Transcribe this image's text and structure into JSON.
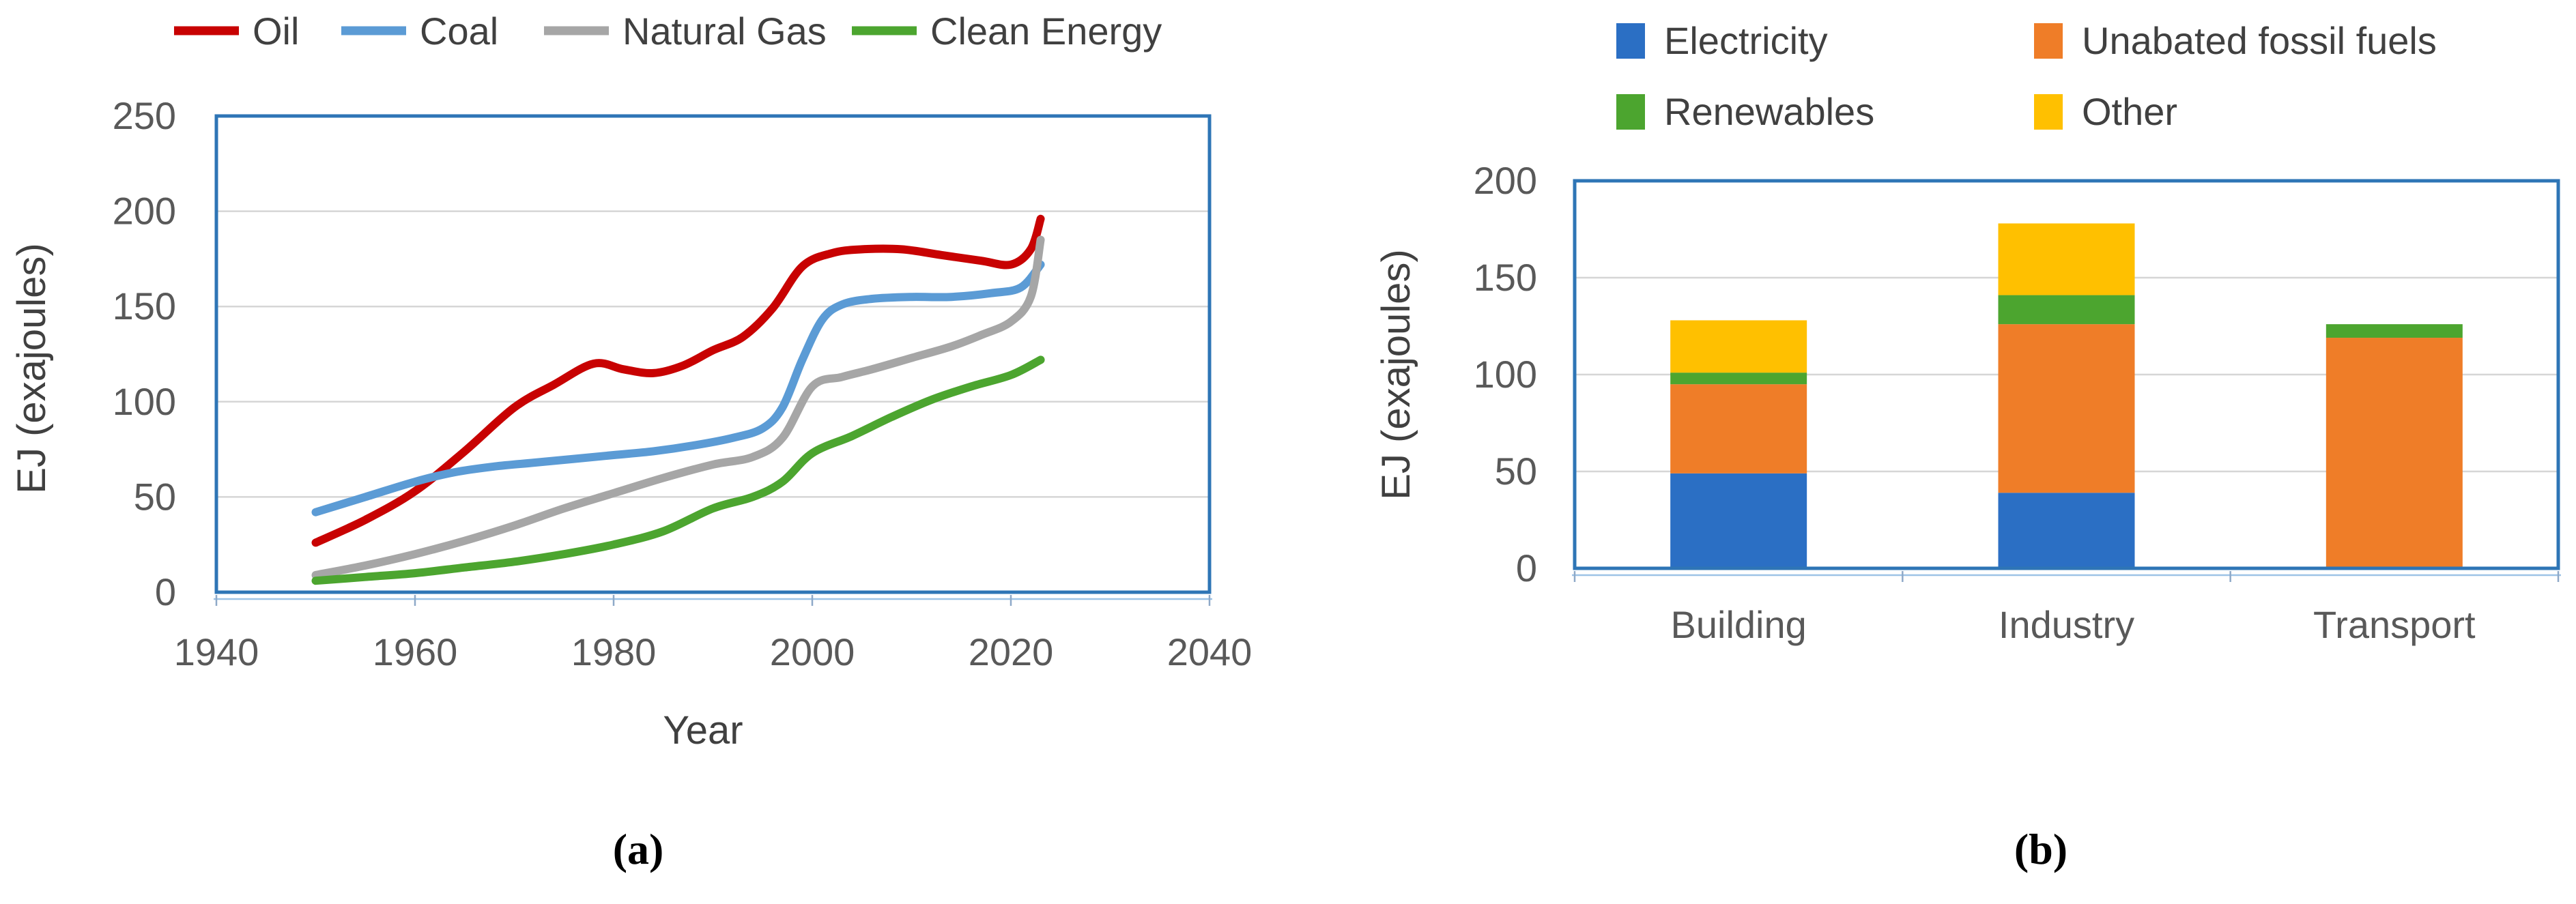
{
  "figure": {
    "captions": {
      "a": "(a)",
      "b": "(b)"
    }
  },
  "colors": {
    "frame": "#2E75B6",
    "grid": "#D6D6D6",
    "tick_text": "#595959",
    "legend_text": "#404040",
    "caption_text": "#000000",
    "sub_axis_line": "#9DC3E6"
  },
  "chart_data": [
    {
      "id": "a",
      "type": "line",
      "title": "",
      "xlabel": "Year",
      "ylabel": "EJ (exajoules)",
      "xlim": [
        1940,
        2040
      ],
      "ylim": [
        0,
        250
      ],
      "xticks": [
        1940,
        1960,
        1980,
        2000,
        2020,
        2040
      ],
      "yticks": [
        0,
        50,
        100,
        150,
        200,
        250
      ],
      "grid": "horizontal",
      "legend_position": "top",
      "series": [
        {
          "name": "Oil",
          "color": "#C80202",
          "points": [
            [
              1950,
              26
            ],
            [
              1955,
              38
            ],
            [
              1960,
              53
            ],
            [
              1965,
              74
            ],
            [
              1970,
              97
            ],
            [
              1974,
              109
            ],
            [
              1978,
              120
            ],
            [
              1981,
              117
            ],
            [
              1984,
              115
            ],
            [
              1987,
              119
            ],
            [
              1990,
              127
            ],
            [
              1993,
              134
            ],
            [
              1996,
              149
            ],
            [
              1999,
              171
            ],
            [
              2002,
              178
            ],
            [
              2005,
              180
            ],
            [
              2009,
              180
            ],
            [
              2013,
              177
            ],
            [
              2017,
              174
            ],
            [
              2020,
              172
            ],
            [
              2022,
              180
            ],
            [
              2023,
              196
            ]
          ]
        },
        {
          "name": "Coal",
          "color": "#5B9BD5",
          "points": [
            [
              1950,
              42
            ],
            [
              1955,
              50
            ],
            [
              1960,
              58
            ],
            [
              1964,
              63
            ],
            [
              1968,
              66
            ],
            [
              1972,
              68
            ],
            [
              1976,
              70
            ],
            [
              1980,
              72
            ],
            [
              1984,
              74
            ],
            [
              1988,
              77
            ],
            [
              1992,
              81
            ],
            [
              1995,
              86
            ],
            [
              1997,
              97
            ],
            [
              1999,
              122
            ],
            [
              2001,
              143
            ],
            [
              2003,
              151
            ],
            [
              2006,
              154
            ],
            [
              2010,
              155
            ],
            [
              2014,
              155
            ],
            [
              2018,
              157
            ],
            [
              2021,
              160
            ],
            [
              2023,
              172
            ]
          ]
        },
        {
          "name": "Natural Gas",
          "color": "#A6A6A6",
          "points": [
            [
              1950,
              9
            ],
            [
              1955,
              14
            ],
            [
              1960,
              20
            ],
            [
              1965,
              27
            ],
            [
              1970,
              35
            ],
            [
              1975,
              44
            ],
            [
              1980,
              52
            ],
            [
              1985,
              60
            ],
            [
              1990,
              67
            ],
            [
              1994,
              71
            ],
            [
              1997,
              81
            ],
            [
              2000,
              108
            ],
            [
              2003,
              113
            ],
            [
              2006,
              117
            ],
            [
              2010,
              123
            ],
            [
              2014,
              129
            ],
            [
              2017,
              135
            ],
            [
              2020,
              142
            ],
            [
              2022,
              155
            ],
            [
              2023,
              185
            ]
          ]
        },
        {
          "name": "Clean Energy",
          "color": "#4CA52F",
          "points": [
            [
              1950,
              6
            ],
            [
              1955,
              8
            ],
            [
              1960,
              10
            ],
            [
              1965,
              13
            ],
            [
              1970,
              16
            ],
            [
              1975,
              20
            ],
            [
              1980,
              25
            ],
            [
              1985,
              32
            ],
            [
              1990,
              44
            ],
            [
              1994,
              50
            ],
            [
              1997,
              58
            ],
            [
              2000,
              73
            ],
            [
              2004,
              82
            ],
            [
              2008,
              92
            ],
            [
              2012,
              101
            ],
            [
              2016,
              108
            ],
            [
              2020,
              114
            ],
            [
              2023,
              122
            ]
          ]
        }
      ]
    },
    {
      "id": "b",
      "type": "bar",
      "stacked": true,
      "title": "",
      "xlabel": "",
      "ylabel": "EJ (exajoules)",
      "ylim": [
        0,
        200
      ],
      "yticks": [
        0,
        50,
        100,
        150,
        200
      ],
      "grid": "horizontal",
      "legend_position": "top",
      "categories": [
        "Building",
        "Industry",
        "Transport"
      ],
      "series": [
        {
          "name": "Electricity",
          "color": "#2B6FC4",
          "values": [
            49,
            39,
            0
          ]
        },
        {
          "name": "Unabated fossil fuels",
          "color": "#EF7D28",
          "values": [
            46,
            87,
            119
          ]
        },
        {
          "name": "Renewables",
          "color": "#4CA52F",
          "values": [
            6,
            15,
            7
          ]
        },
        {
          "name": "Other",
          "color": "#FFC000",
          "values": [
            27,
            37,
            0
          ]
        }
      ]
    }
  ]
}
